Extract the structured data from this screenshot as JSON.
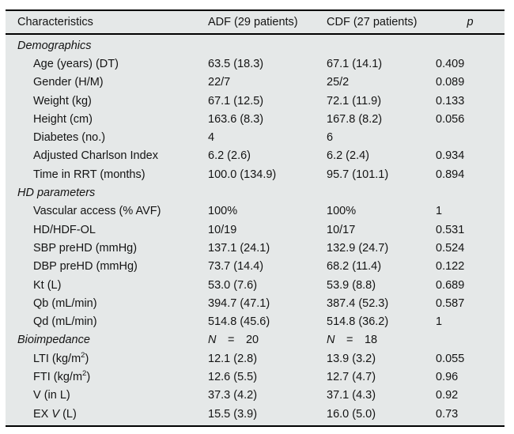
{
  "table": {
    "header": [
      {
        "label": "Characteristics",
        "italic": false
      },
      {
        "label": "ADF (29 patients)",
        "italic": false
      },
      {
        "label": "CDF (27 patients)",
        "italic": false
      },
      {
        "label": "p",
        "italic": true
      }
    ],
    "rows": [
      {
        "type": "section",
        "label": [
          {
            "t": "Demographics",
            "i": true
          }
        ],
        "adf": [],
        "cdf": [],
        "p": []
      },
      {
        "type": "item",
        "label": [
          {
            "t": "Age (years) (DT)"
          }
        ],
        "adf": [
          {
            "t": "63.5 (18.3)"
          }
        ],
        "cdf": [
          {
            "t": "67.1 (14.1)"
          }
        ],
        "p": [
          {
            "t": "0.409"
          }
        ]
      },
      {
        "type": "item",
        "label": [
          {
            "t": "Gender (H/M)"
          }
        ],
        "adf": [
          {
            "t": "22/7"
          }
        ],
        "cdf": [
          {
            "t": "25/2"
          }
        ],
        "p": [
          {
            "t": "0.089"
          }
        ]
      },
      {
        "type": "item",
        "label": [
          {
            "t": "Weight (kg)"
          }
        ],
        "adf": [
          {
            "t": "67.1 (12.5)"
          }
        ],
        "cdf": [
          {
            "t": "72.1 (11.9)"
          }
        ],
        "p": [
          {
            "t": "0.133"
          }
        ]
      },
      {
        "type": "item",
        "label": [
          {
            "t": "Height (cm)"
          }
        ],
        "adf": [
          {
            "t": "163.6 (8.3)"
          }
        ],
        "cdf": [
          {
            "t": "167.8 (8.2)"
          }
        ],
        "p": [
          {
            "t": "0.056"
          }
        ]
      },
      {
        "type": "item",
        "label": [
          {
            "t": "Diabetes (no.)"
          }
        ],
        "adf": [
          {
            "t": "4"
          }
        ],
        "cdf": [
          {
            "t": "6"
          }
        ],
        "p": []
      },
      {
        "type": "item",
        "label": [
          {
            "t": "Adjusted Charlson Index"
          }
        ],
        "adf": [
          {
            "t": "6.2 (2.6)"
          }
        ],
        "cdf": [
          {
            "t": "6.2 (2.4)"
          }
        ],
        "p": [
          {
            "t": "0.934"
          }
        ]
      },
      {
        "type": "item",
        "label": [
          {
            "t": "Time in RRT (months)"
          }
        ],
        "adf": [
          {
            "t": "100.0 (134.9)"
          }
        ],
        "cdf": [
          {
            "t": "95.7 (101.1)"
          }
        ],
        "p": [
          {
            "t": "0.894"
          }
        ]
      },
      {
        "type": "section",
        "label": [
          {
            "t": "HD parameters",
            "i": true
          }
        ],
        "adf": [],
        "cdf": [],
        "p": []
      },
      {
        "type": "item",
        "label": [
          {
            "t": "Vascular access (% AVF)"
          }
        ],
        "adf": [
          {
            "t": "100%"
          }
        ],
        "cdf": [
          {
            "t": "100%"
          }
        ],
        "p": [
          {
            "t": "1"
          }
        ]
      },
      {
        "type": "item",
        "label": [
          {
            "t": "HD/HDF-OL"
          }
        ],
        "adf": [
          {
            "t": "10/19"
          }
        ],
        "cdf": [
          {
            "t": "10/17"
          }
        ],
        "p": [
          {
            "t": "0.531"
          }
        ]
      },
      {
        "type": "item",
        "label": [
          {
            "t": "SBP preHD (mmHg)"
          }
        ],
        "adf": [
          {
            "t": "137.1 (24.1)"
          }
        ],
        "cdf": [
          {
            "t": "132.9 (24.7)"
          }
        ],
        "p": [
          {
            "t": "0.524"
          }
        ]
      },
      {
        "type": "item",
        "label": [
          {
            "t": "DBP preHD (mmHg)"
          }
        ],
        "adf": [
          {
            "t": "73.7 (14.4)"
          }
        ],
        "cdf": [
          {
            "t": "68.2 (11.4)"
          }
        ],
        "p": [
          {
            "t": "0.122"
          }
        ]
      },
      {
        "type": "item",
        "label": [
          {
            "t": "Kt (L)"
          }
        ],
        "adf": [
          {
            "t": "53.0 (7.6)"
          }
        ],
        "cdf": [
          {
            "t": "53.9 (8.8)"
          }
        ],
        "p": [
          {
            "t": "0.689"
          }
        ]
      },
      {
        "type": "item",
        "label": [
          {
            "t": "Qb (mL/min)"
          }
        ],
        "adf": [
          {
            "t": "394.7 (47.1)"
          }
        ],
        "cdf": [
          {
            "t": "387.4 (52.3)"
          }
        ],
        "p": [
          {
            "t": "0.587"
          }
        ]
      },
      {
        "type": "item",
        "label": [
          {
            "t": "Qd (mL/min)"
          }
        ],
        "adf": [
          {
            "t": "514.8 (45.6)"
          }
        ],
        "cdf": [
          {
            "t": "514.8 (36.2)"
          }
        ],
        "p": [
          {
            "t": "1"
          }
        ]
      },
      {
        "type": "section",
        "label": [
          {
            "t": "Bioimpedance",
            "i": true
          }
        ],
        "adf": [
          {
            "t": "N",
            "i": true
          },
          {
            "t": "  =  20"
          }
        ],
        "cdf": [
          {
            "t": "N",
            "i": true
          },
          {
            "t": "  =  18"
          }
        ],
        "p": []
      },
      {
        "type": "item",
        "label": [
          {
            "t": "LTI (kg/m"
          },
          {
            "t": "2",
            "sup": true
          },
          {
            "t": ")"
          }
        ],
        "adf": [
          {
            "t": "12.1 (2.8)"
          }
        ],
        "cdf": [
          {
            "t": "13.9 (3.2)"
          }
        ],
        "p": [
          {
            "t": "0.055"
          }
        ]
      },
      {
        "type": "item",
        "label": [
          {
            "t": "FTI (kg/m"
          },
          {
            "t": "2",
            "sup": true
          },
          {
            "t": ")"
          }
        ],
        "adf": [
          {
            "t": "12.6 (5.5)"
          }
        ],
        "cdf": [
          {
            "t": "12.7 (4.7)"
          }
        ],
        "p": [
          {
            "t": "0.96"
          }
        ]
      },
      {
        "type": "item",
        "label": [
          {
            "t": "V (in L)"
          }
        ],
        "adf": [
          {
            "t": "37.3 (4.2)"
          }
        ],
        "cdf": [
          {
            "t": "37.1 (4.3)"
          }
        ],
        "p": [
          {
            "t": "0.92"
          }
        ]
      },
      {
        "type": "item",
        "label": [
          {
            "t": "EX "
          },
          {
            "t": "V",
            "i": true
          },
          {
            "t": " (L)"
          }
        ],
        "adf": [
          {
            "t": "15.5 (3.9)"
          }
        ],
        "cdf": [
          {
            "t": "16.0 (5.0)"
          }
        ],
        "p": [
          {
            "t": "0.73"
          }
        ]
      }
    ]
  }
}
